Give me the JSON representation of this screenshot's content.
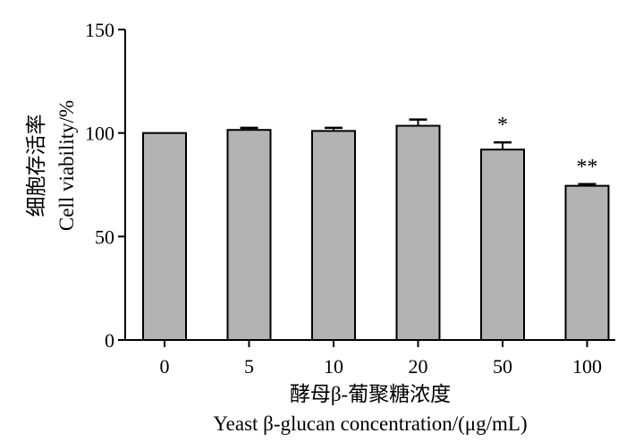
{
  "chart_data": {
    "type": "bar",
    "categories": [
      "0",
      "5",
      "10",
      "20",
      "50",
      "100"
    ],
    "values": [
      100,
      101.5,
      101,
      103.5,
      92,
      74.5
    ],
    "errors": [
      0,
      1,
      1.5,
      3,
      3.5,
      0.8
    ],
    "significance": [
      "",
      "",
      "",
      "",
      "*",
      "**"
    ],
    "xlabel": [
      "酵母β-葡聚糖浓度",
      "Yeast β-glucan concentration/(μg/mL)"
    ],
    "ylabel": [
      "细胞存活率",
      "Cell viability/%"
    ],
    "ylim": [
      0,
      150
    ],
    "yticks": [
      0,
      50,
      100,
      150
    ],
    "grid": false,
    "colors": {
      "bar_fill": "#b3b3b3",
      "bar_stroke": "#000000",
      "axis": "#000000"
    }
  }
}
